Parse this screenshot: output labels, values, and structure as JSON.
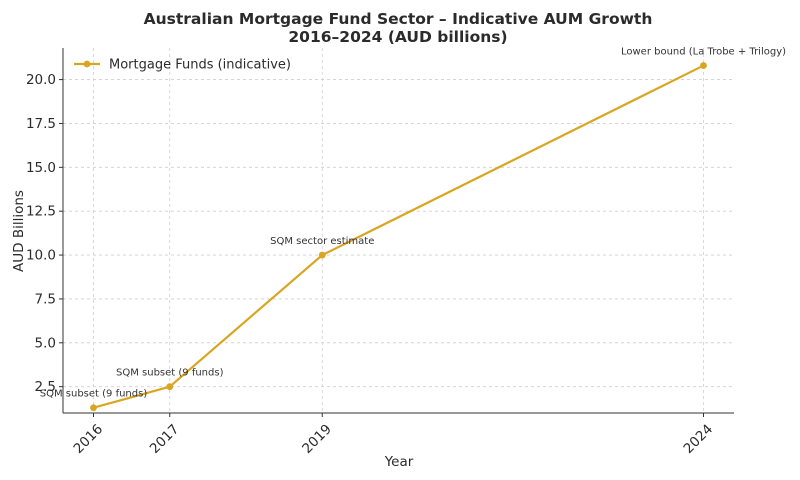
{
  "chart_data": {
    "type": "line",
    "title_line1": "Australian Mortgage Fund Sector – Indicative AUM Growth",
    "title_line2": "2016–2024 (AUD billions)",
    "xlabel": "Year",
    "ylabel": "AUD Billions",
    "x": [
      2016,
      2017,
      2019,
      2024
    ],
    "x_tick_labels": [
      "2016",
      "2017",
      "2019",
      "2024"
    ],
    "xlim": [
      2015.6,
      2024.4
    ],
    "ylim": [
      1.0,
      21.8
    ],
    "y_ticks": [
      2.5,
      5.0,
      7.5,
      10.0,
      12.5,
      15.0,
      17.5,
      20.0
    ],
    "y_tick_labels": [
      "2.5",
      "5.0",
      "7.5",
      "10.0",
      "12.5",
      "15.0",
      "17.5",
      "20.0"
    ],
    "grid": true,
    "legend_position": "top-left",
    "series": [
      {
        "name": "Mortgage Funds (indicative)",
        "color": "#DAA520",
        "values": [
          1.3,
          2.5,
          10.0,
          20.8
        ]
      }
    ],
    "annotations": [
      {
        "x": 2016,
        "y": 1.3,
        "text": "SQM subset (9 funds)"
      },
      {
        "x": 2017,
        "y": 2.5,
        "text": "SQM subset (9 funds)"
      },
      {
        "x": 2019,
        "y": 10.0,
        "text": "SQM sector estimate"
      },
      {
        "x": 2024,
        "y": 20.8,
        "text": "Lower bound (La Trobe + Trilogy)"
      }
    ]
  }
}
